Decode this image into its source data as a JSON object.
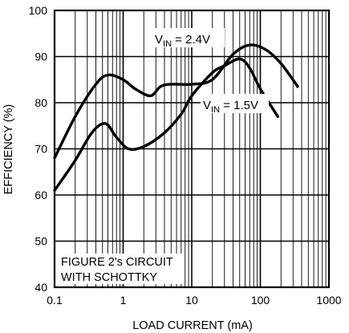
{
  "chart_data": {
    "type": "line",
    "title": "",
    "xlabel": "LOAD CURRENT (mA)",
    "ylabel": "EFFICIENCY (%)",
    "xscale": "log",
    "xlim": [
      0.1,
      1000
    ],
    "ylim": [
      40,
      100
    ],
    "grid": true,
    "x_tick_labels": [
      "0.1",
      "1",
      "10",
      "100",
      "1000"
    ],
    "y_tick_labels": [
      "40",
      "50",
      "60",
      "70",
      "80",
      "90",
      "100"
    ],
    "annotation": [
      "FIGURE 2's CIRCUIT",
      "WITH SCHOTTKY"
    ],
    "series": [
      {
        "name": "VIN = 2.4V",
        "label_main": "V",
        "label_sub": "IN",
        "label_rest": " = 2.4V",
        "x": [
          0.1,
          0.2,
          0.4,
          0.6,
          1,
          1.5,
          2.5,
          3.5,
          5,
          10,
          20,
          40,
          70,
          120,
          200,
          350
        ],
        "y": [
          68,
          77,
          84,
          86,
          85,
          83,
          81.5,
          83.5,
          84,
          84,
          85,
          90.5,
          92.5,
          91.5,
          88.5,
          83.5
        ]
      },
      {
        "name": "VIN = 1.5V",
        "label_main": "V",
        "label_sub": "IN",
        "label_rest": " = 1.5V",
        "x": [
          0.1,
          0.2,
          0.35,
          0.55,
          0.8,
          1.2,
          2,
          4,
          7,
          10,
          20,
          30,
          50,
          70,
          100,
          180
        ],
        "y": [
          61,
          67.5,
          73.5,
          75.5,
          72.5,
          70,
          70.5,
          73.5,
          77.5,
          81.5,
          86.5,
          88,
          89.5,
          87.5,
          83,
          77
        ]
      }
    ]
  }
}
